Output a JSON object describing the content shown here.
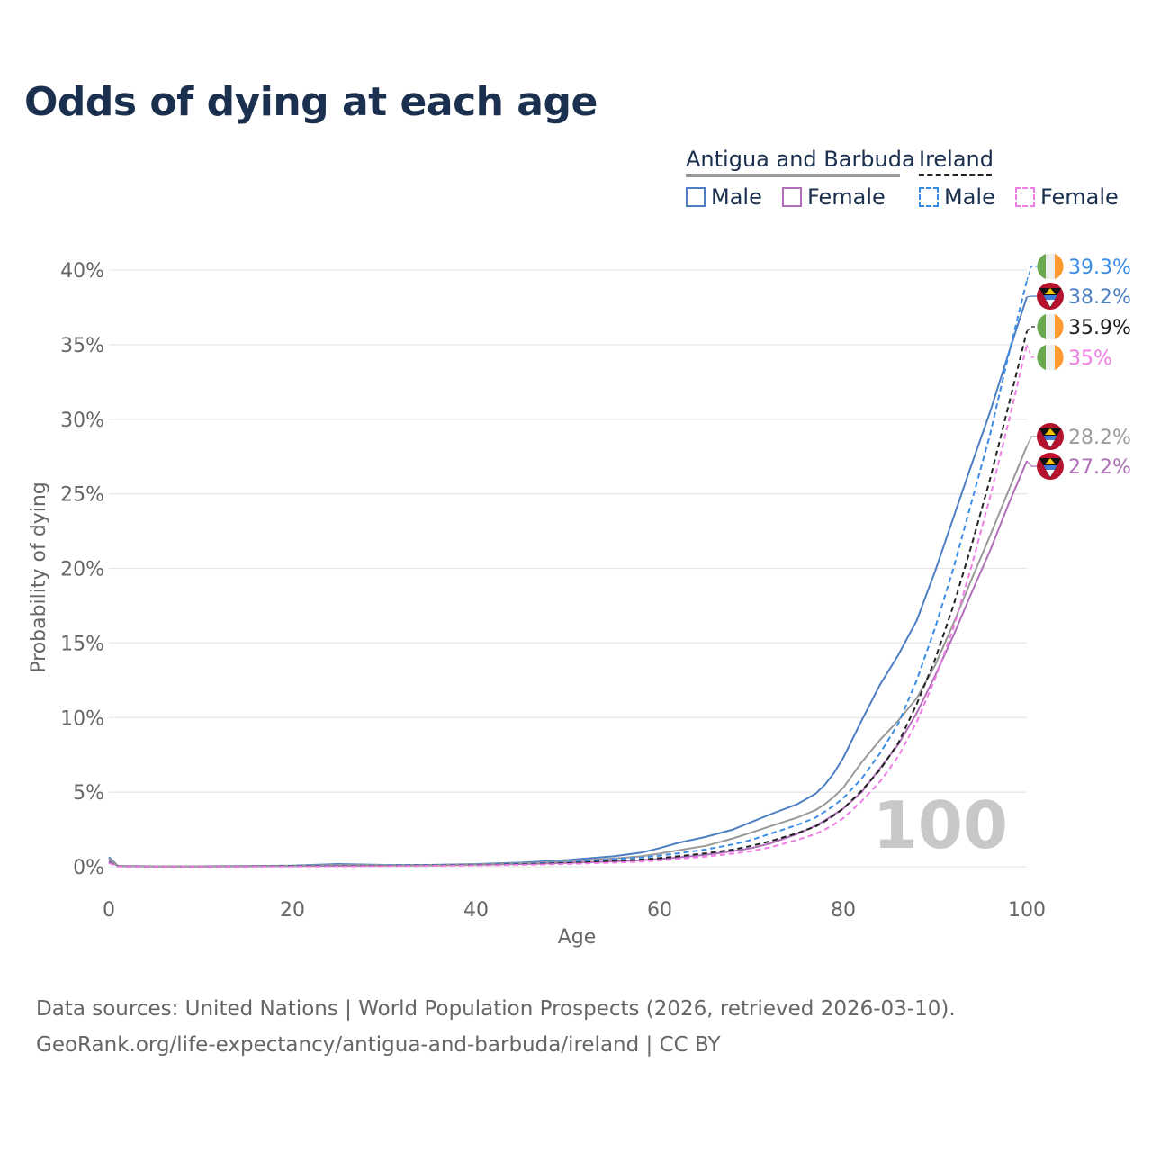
{
  "title": "Odds of dying at each age",
  "legend": {
    "countries": [
      {
        "name": "Antigua and Barbuda",
        "line_color": "#999999",
        "dashed": false
      },
      {
        "name": "Ireland",
        "line_color": "#222222",
        "dashed": true
      }
    ],
    "items": [
      {
        "label": "Male",
        "color": "#4e7fc4",
        "dashed": false
      },
      {
        "label": "Female",
        "color": "#b06fb8",
        "dashed": false
      },
      {
        "label": "Male",
        "color": "#3a8de6",
        "dashed": true
      },
      {
        "label": "Female",
        "color": "#f07ce4",
        "dashed": true
      }
    ]
  },
  "watermark": "100",
  "source": {
    "line1": "Data sources: United Nations | World Population Prospects (2026, retrieved 2026-03-10).",
    "line2": "GeoRank.org/life-expectancy/antigua-and-barbuda/ireland | CC BY"
  },
  "chart_data": {
    "type": "line",
    "title": "Odds of dying at each age",
    "xlabel": "Age",
    "ylabel": "Probability of dying",
    "xlim": [
      0,
      100
    ],
    "ylim": [
      0,
      40
    ],
    "x_ticks": [
      0,
      20,
      40,
      60,
      80,
      100
    ],
    "y_ticks": [
      0,
      5,
      10,
      15,
      20,
      25,
      30,
      35,
      40
    ],
    "y_tick_labels": [
      "0%",
      "5%",
      "10%",
      "15%",
      "20%",
      "25%",
      "30%",
      "35%",
      "40%"
    ],
    "grid": true,
    "x": [
      0,
      1,
      5,
      10,
      15,
      20,
      25,
      30,
      35,
      40,
      45,
      50,
      55,
      58,
      60,
      62,
      65,
      68,
      70,
      72,
      75,
      77,
      78,
      79,
      80,
      82,
      84,
      86,
      88,
      90,
      92,
      94,
      96,
      98,
      100
    ],
    "series": [
      {
        "name": "Antigua and Barbuda Male",
        "color": "#4e7fc4",
        "dashed": false,
        "end_label": "38.2%",
        "flag": "antigua",
        "values": [
          0.65,
          0.05,
          0.03,
          0.03,
          0.05,
          0.08,
          0.18,
          0.12,
          0.12,
          0.18,
          0.28,
          0.45,
          0.7,
          0.95,
          1.25,
          1.6,
          2.0,
          2.5,
          3.0,
          3.5,
          4.2,
          4.9,
          5.5,
          6.3,
          7.3,
          9.8,
          12.2,
          14.2,
          16.5,
          19.8,
          23.4,
          27.0,
          30.5,
          34.4,
          38.2
        ]
      },
      {
        "name": "Antigua and Barbuda Female",
        "color": "#b06fb8",
        "dashed": false,
        "end_label": "27.2%",
        "flag": "antigua",
        "values": [
          0.4,
          0.04,
          0.02,
          0.02,
          0.03,
          0.04,
          0.06,
          0.07,
          0.09,
          0.13,
          0.18,
          0.26,
          0.36,
          0.44,
          0.52,
          0.62,
          0.8,
          1.05,
          1.25,
          1.55,
          2.2,
          2.75,
          3.1,
          3.5,
          3.9,
          5.0,
          6.6,
          8.2,
          10.3,
          12.8,
          15.5,
          18.4,
          21.2,
          24.3,
          27.2
        ]
      },
      {
        "name": "Antigua and Barbuda (both sexes)",
        "color": "#999999",
        "dashed": false,
        "end_label": "28.2%",
        "flag": "antigua",
        "values": [
          0.55,
          0.05,
          0.03,
          0.03,
          0.04,
          0.06,
          0.12,
          0.1,
          0.11,
          0.16,
          0.23,
          0.36,
          0.55,
          0.7,
          0.88,
          1.1,
          1.4,
          1.9,
          2.3,
          2.7,
          3.3,
          3.8,
          4.2,
          4.7,
          5.3,
          7.0,
          8.5,
          9.8,
          11.3,
          13.5,
          16.3,
          19.3,
          22.2,
          25.2,
          28.2
        ]
      },
      {
        "name": "Ireland Male",
        "color": "#3a8de6",
        "dashed": true,
        "end_label": "39.3%",
        "flag": "ireland",
        "values": [
          0.3,
          0.03,
          0.01,
          0.01,
          0.03,
          0.06,
          0.07,
          0.08,
          0.1,
          0.13,
          0.2,
          0.3,
          0.5,
          0.62,
          0.75,
          0.9,
          1.15,
          1.5,
          1.8,
          2.2,
          2.8,
          3.3,
          3.7,
          4.1,
          4.6,
          5.9,
          7.6,
          9.6,
          12.5,
          16.0,
          20.0,
          24.5,
          29.0,
          34.3,
          39.3
        ]
      },
      {
        "name": "Ireland (both sexes)",
        "color": "#222222",
        "dashed": true,
        "end_label": "35.9%",
        "flag": "ireland",
        "values": [
          0.28,
          0.03,
          0.01,
          0.01,
          0.02,
          0.04,
          0.05,
          0.06,
          0.08,
          0.11,
          0.16,
          0.24,
          0.38,
          0.48,
          0.58,
          0.7,
          0.9,
          1.15,
          1.4,
          1.7,
          2.25,
          2.7,
          3.05,
          3.45,
          3.9,
          5.1,
          6.5,
          8.3,
          10.9,
          13.9,
          17.5,
          21.6,
          26.0,
          30.9,
          35.9
        ]
      },
      {
        "name": "Ireland Female",
        "color": "#f07ce4",
        "dashed": true,
        "end_label": "35%",
        "flag": "ireland",
        "values": [
          0.25,
          0.02,
          0.01,
          0.01,
          0.02,
          0.02,
          0.03,
          0.04,
          0.06,
          0.09,
          0.13,
          0.19,
          0.28,
          0.35,
          0.42,
          0.52,
          0.68,
          0.88,
          1.05,
          1.3,
          1.8,
          2.2,
          2.5,
          2.85,
          3.25,
          4.4,
          5.7,
          7.4,
          9.7,
          12.6,
          16.0,
          20.2,
          24.8,
          29.8,
          35.0
        ]
      }
    ]
  }
}
